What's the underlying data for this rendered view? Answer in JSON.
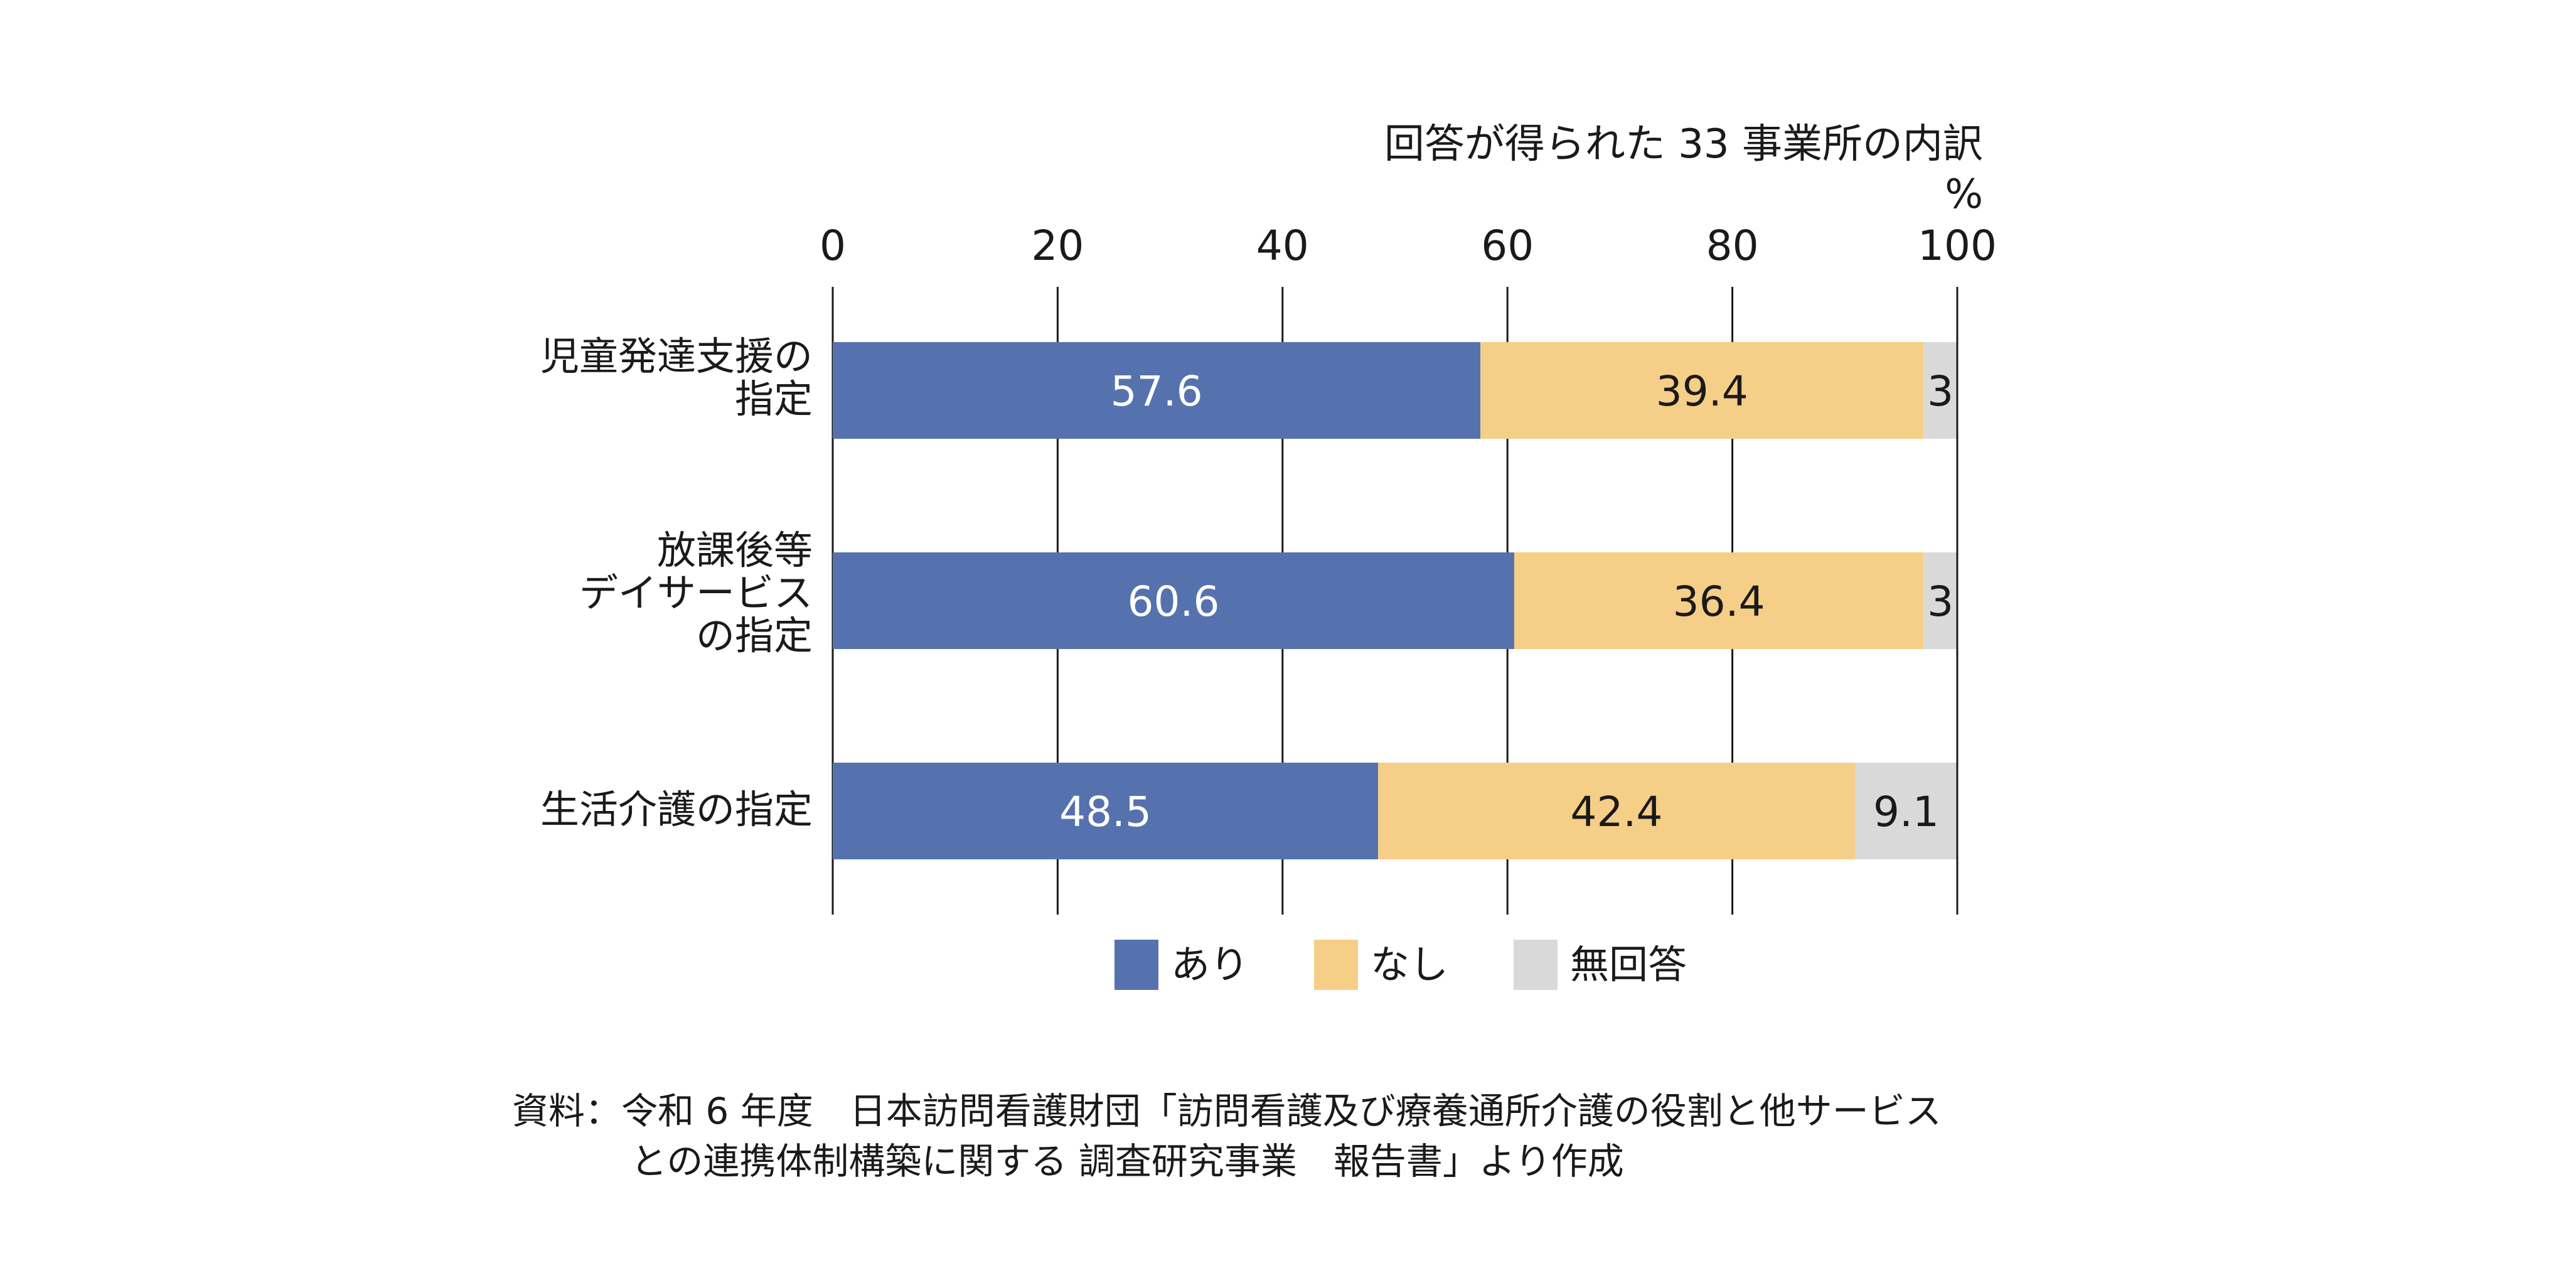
{
  "chart_data": {
    "type": "bar",
    "orientation": "horizontal",
    "stacked": true,
    "title": "回答が得られた 33 事業所の内訳",
    "unit_label": "%",
    "xlim": [
      0,
      100
    ],
    "x_ticks": [
      "0",
      "20",
      "40",
      "60",
      "80",
      "100"
    ],
    "grid": true,
    "categories": [
      "児童発達支援の\n指定",
      "放課後等\nデイサービス\nの指定",
      "生活介護の指定"
    ],
    "series": [
      {
        "name": "あり",
        "color": "#5672AE",
        "values": [
          57.6,
          60.6,
          48.5
        ],
        "labels": [
          "57.6",
          "60.6",
          "48.5"
        ],
        "label_color": "#ffffff"
      },
      {
        "name": "なし",
        "color": "#F5CE87",
        "values": [
          39.4,
          36.4,
          42.4
        ],
        "labels": [
          "39.4",
          "36.4",
          "42.4"
        ],
        "label_color": "#1a1a1a"
      },
      {
        "name": "無回答",
        "color": "#D9D9D9",
        "values": [
          3.0,
          3.0,
          9.1
        ],
        "labels": [
          "3",
          "3",
          "9.1"
        ],
        "label_color": "#1a1a1a"
      }
    ],
    "legend_position": "bottom"
  },
  "source": {
    "line1": "資料：令和 6 年度　日本訪問看護財団「訪問看護及び療養通所介護の役割と他サービス",
    "line2": "との連携体制構築に関する 調査研究事業　報告書」より作成"
  }
}
